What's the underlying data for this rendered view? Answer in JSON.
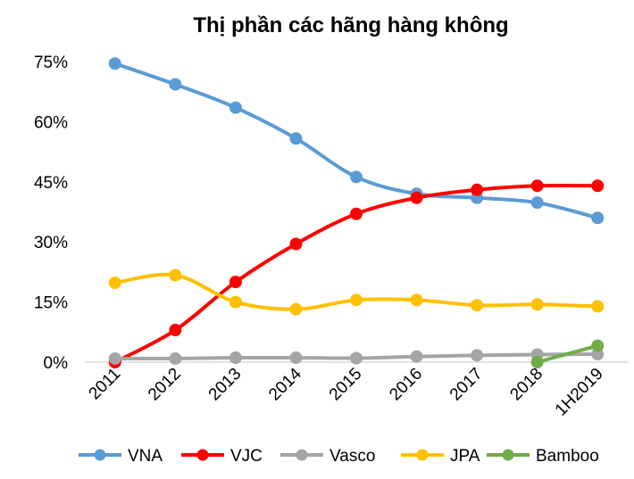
{
  "chart_data": {
    "type": "line",
    "title": "Thị phần các hãng hàng không",
    "categories": [
      "2011",
      "2012",
      "2013",
      "2014",
      "2015",
      "2016",
      "2017",
      "2018",
      "1H2019"
    ],
    "y_tick_labels": [
      "0%",
      "15%",
      "30%",
      "45%",
      "60%",
      "75%"
    ],
    "y_ticks": [
      0,
      15,
      30,
      45,
      60,
      75
    ],
    "ylim": [
      0,
      75
    ],
    "grid": false,
    "legend_position": "bottom",
    "series": [
      {
        "name": "VNA",
        "color": "#5b9bd5",
        "values": [
          74.5,
          69.3,
          63.5,
          55.8,
          46.2,
          42.0,
          41.0,
          39.8,
          36.0
        ]
      },
      {
        "name": "VJC",
        "color": "#ff0000",
        "values": [
          0.0,
          8.0,
          20.0,
          29.5,
          37.0,
          41.0,
          43.0,
          44.0,
          44.0
        ]
      },
      {
        "name": "Vasco",
        "color": "#a5a5a5",
        "values": [
          0.9,
          0.9,
          1.1,
          1.1,
          1.0,
          1.4,
          1.7,
          1.9,
          2.0
        ]
      },
      {
        "name": "JPA",
        "color": "#ffc000",
        "values": [
          19.8,
          21.7,
          15.0,
          13.2,
          15.5,
          15.5,
          14.2,
          14.4,
          13.9
        ]
      },
      {
        "name": "Bamboo",
        "color": "#70ad47",
        "values": [
          null,
          null,
          null,
          null,
          null,
          null,
          null,
          0.0,
          4.1
        ]
      }
    ]
  }
}
